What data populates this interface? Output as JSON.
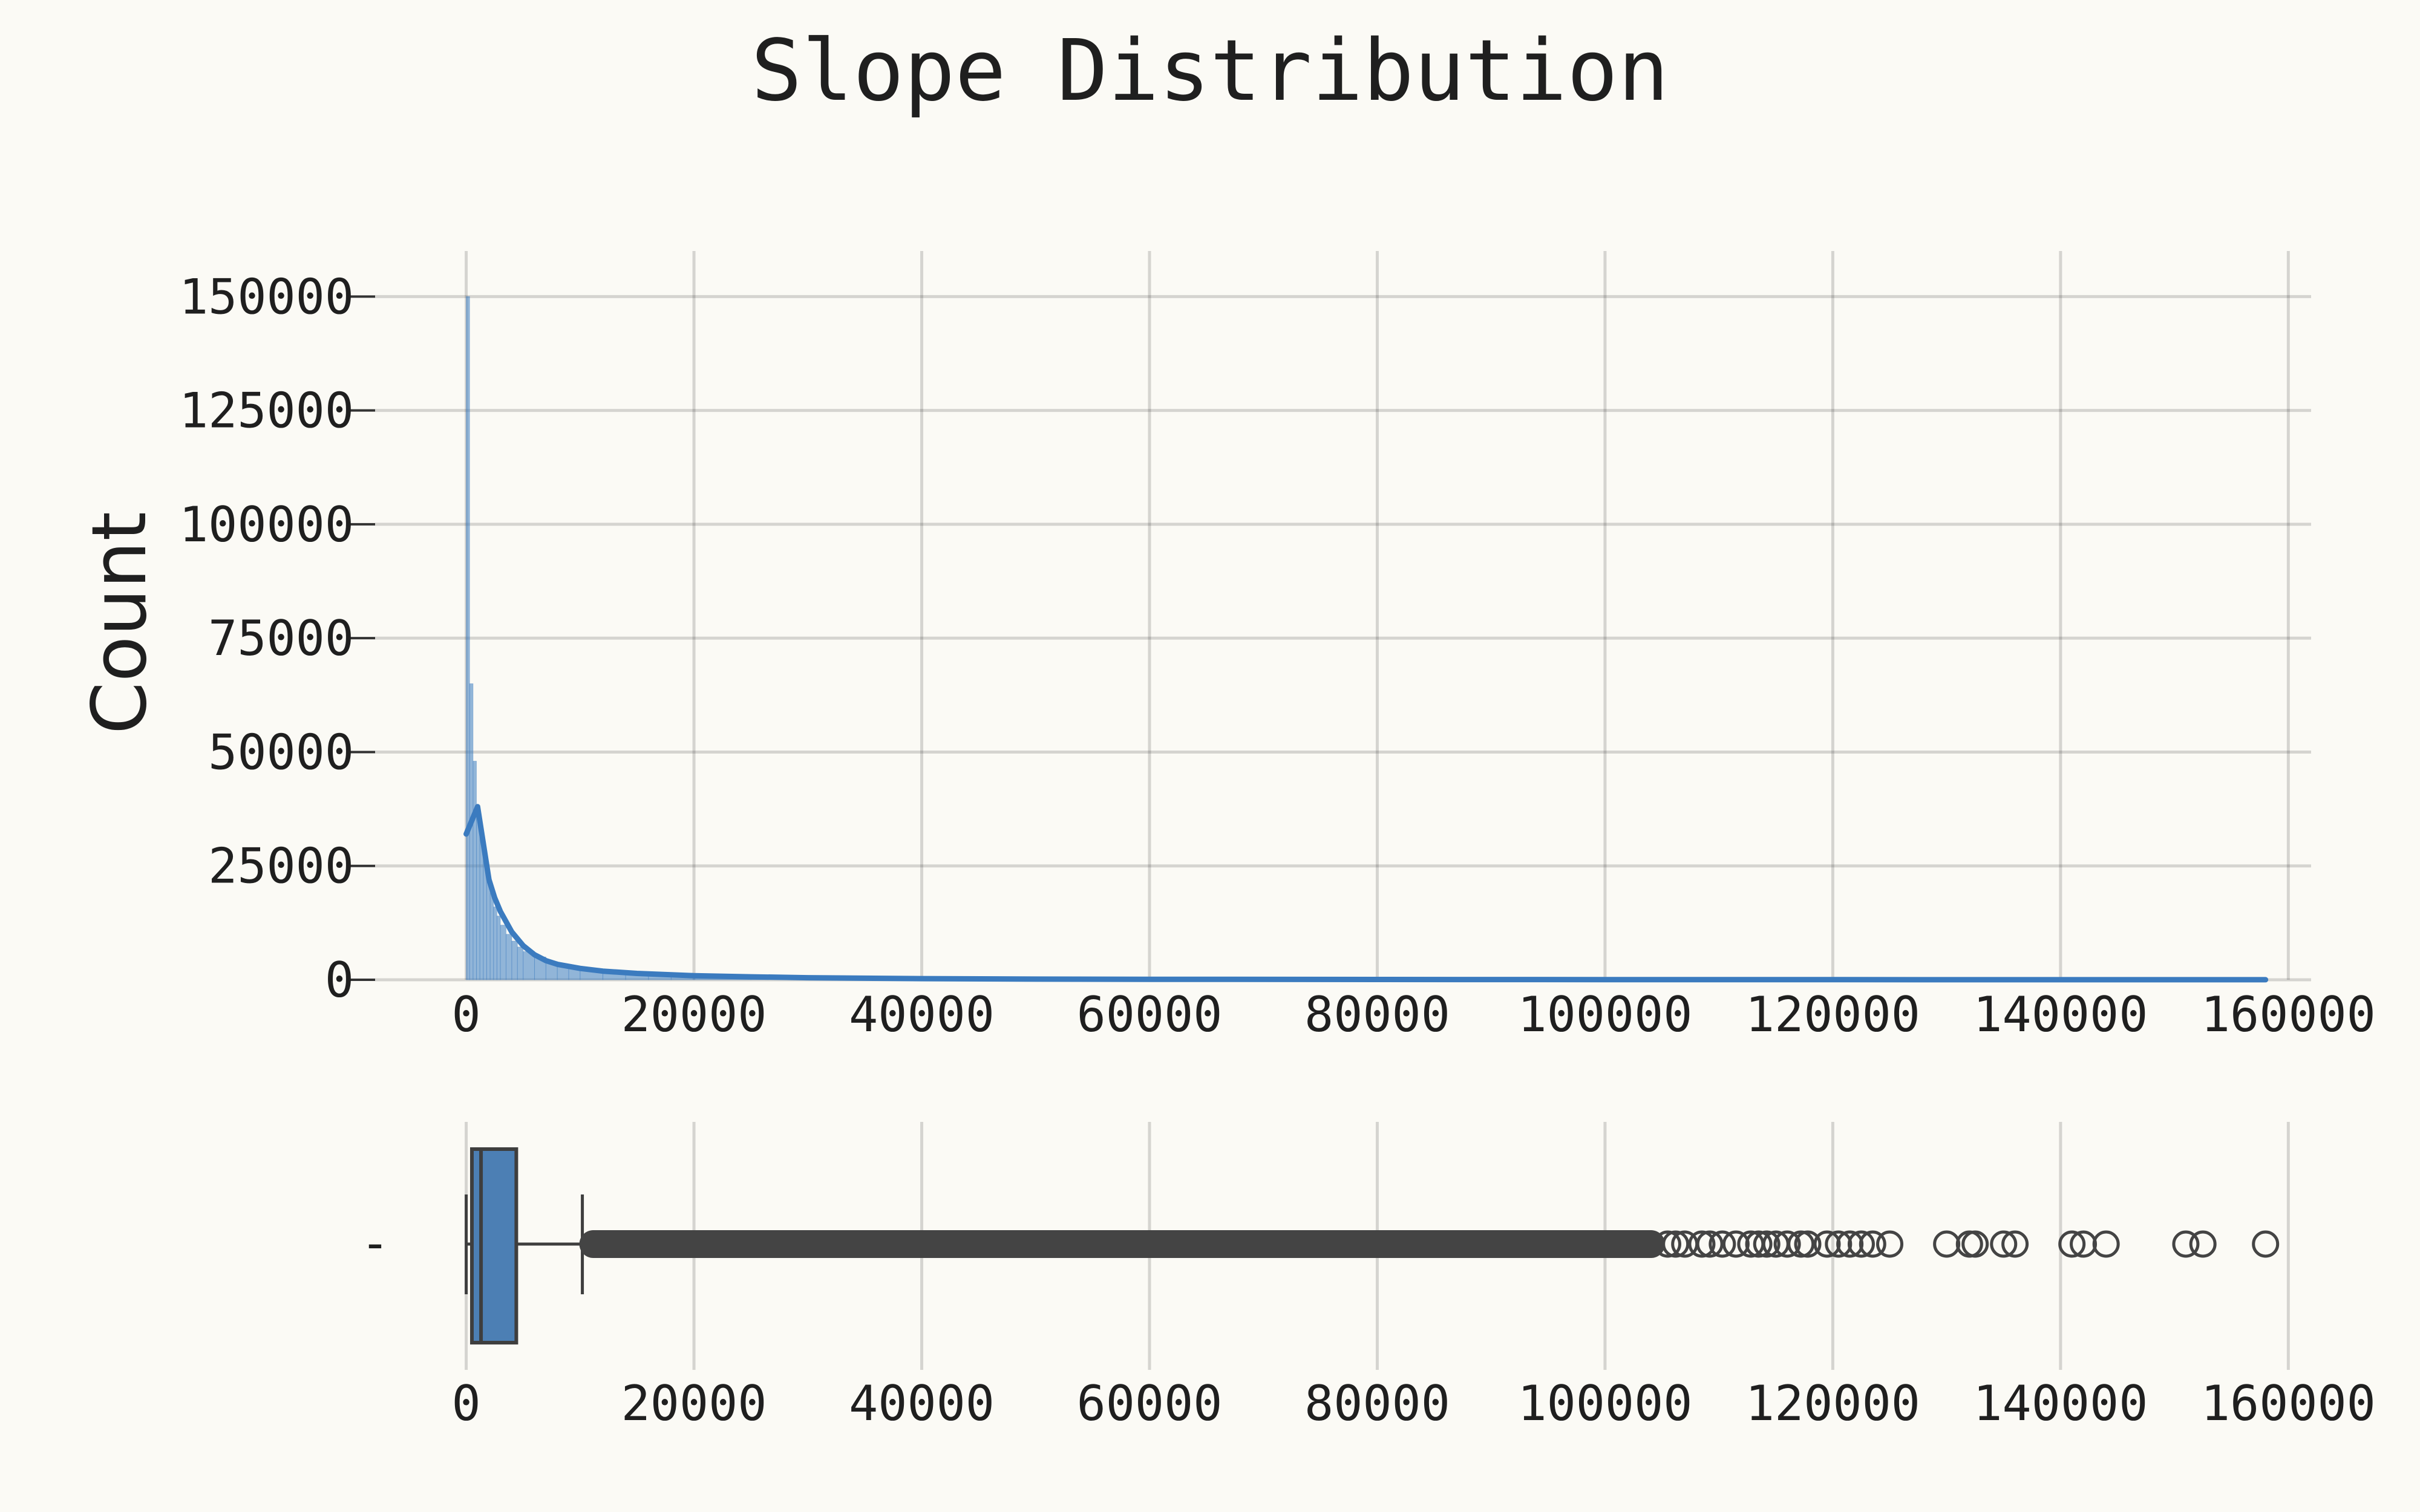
{
  "chart_data": [
    {
      "type": "histogram",
      "title": "Slope Distribution",
      "xlabel": "",
      "ylabel": "Count",
      "xlim": [
        -8000,
        162000
      ],
      "ylim": [
        0,
        160000
      ],
      "x_ticks": [
        0,
        20000,
        40000,
        60000,
        80000,
        100000,
        120000,
        140000,
        160000
      ],
      "y_ticks": [
        0,
        25000,
        50000,
        75000,
        100000,
        125000,
        150000
      ],
      "grid": true,
      "color": "#3b7bbf",
      "bins": {
        "x": [
          0,
          300,
          600,
          900,
          1200,
          1500,
          1800,
          2100,
          2400,
          2700,
          3000,
          3500,
          4000,
          4500,
          5000,
          6000,
          7000,
          8000,
          9000,
          10000,
          12000,
          14000,
          16000,
          18000,
          20000,
          25000,
          30000,
          40000,
          50000
        ],
        "counts": [
          150000,
          65000,
          48000,
          38000,
          32000,
          27000,
          22000,
          19000,
          16000,
          14000,
          12000,
          10000,
          8500,
          7200,
          6200,
          5000,
          4000,
          3300,
          2700,
          2200,
          1700,
          1300,
          1000,
          800,
          600,
          400,
          250,
          120,
          40
        ]
      },
      "kde": {
        "x": [
          0,
          500,
          1000,
          1500,
          2000,
          2500,
          3000,
          4000,
          5000,
          6000,
          7000,
          8000,
          10000,
          12000,
          15000,
          20000,
          25000,
          30000,
          40000,
          50000,
          60000,
          80000,
          100000,
          120000,
          140000,
          158000
        ],
        "y": [
          32000,
          35000,
          38000,
          30000,
          22000,
          18000,
          15000,
          10500,
          7500,
          5500,
          4200,
          3400,
          2500,
          1900,
          1400,
          900,
          650,
          450,
          250,
          150,
          100,
          60,
          40,
          25,
          15,
          10
        ]
      }
    },
    {
      "type": "boxplot",
      "xlim": [
        -8000,
        162000
      ],
      "x_ticks": [
        0,
        20000,
        40000,
        60000,
        80000,
        100000,
        120000,
        140000,
        160000
      ],
      "y_tick_label": "-",
      "color": "#4c7fb4",
      "min": 0,
      "q1": 500,
      "median": 1300,
      "q3": 4400,
      "whisker_high": 10200,
      "outlier_range": [
        10200,
        105000
      ],
      "outliers_sparse": [
        105500,
        106200,
        107000,
        108500,
        109200,
        110300,
        111500,
        112800,
        113500,
        114200,
        115000,
        116000,
        117200,
        117800,
        119500,
        120500,
        121500,
        122500,
        123500,
        125000,
        130000,
        132000,
        132500,
        135000,
        136000,
        141000,
        142000,
        144000,
        151000,
        152500,
        158000
      ]
    }
  ]
}
